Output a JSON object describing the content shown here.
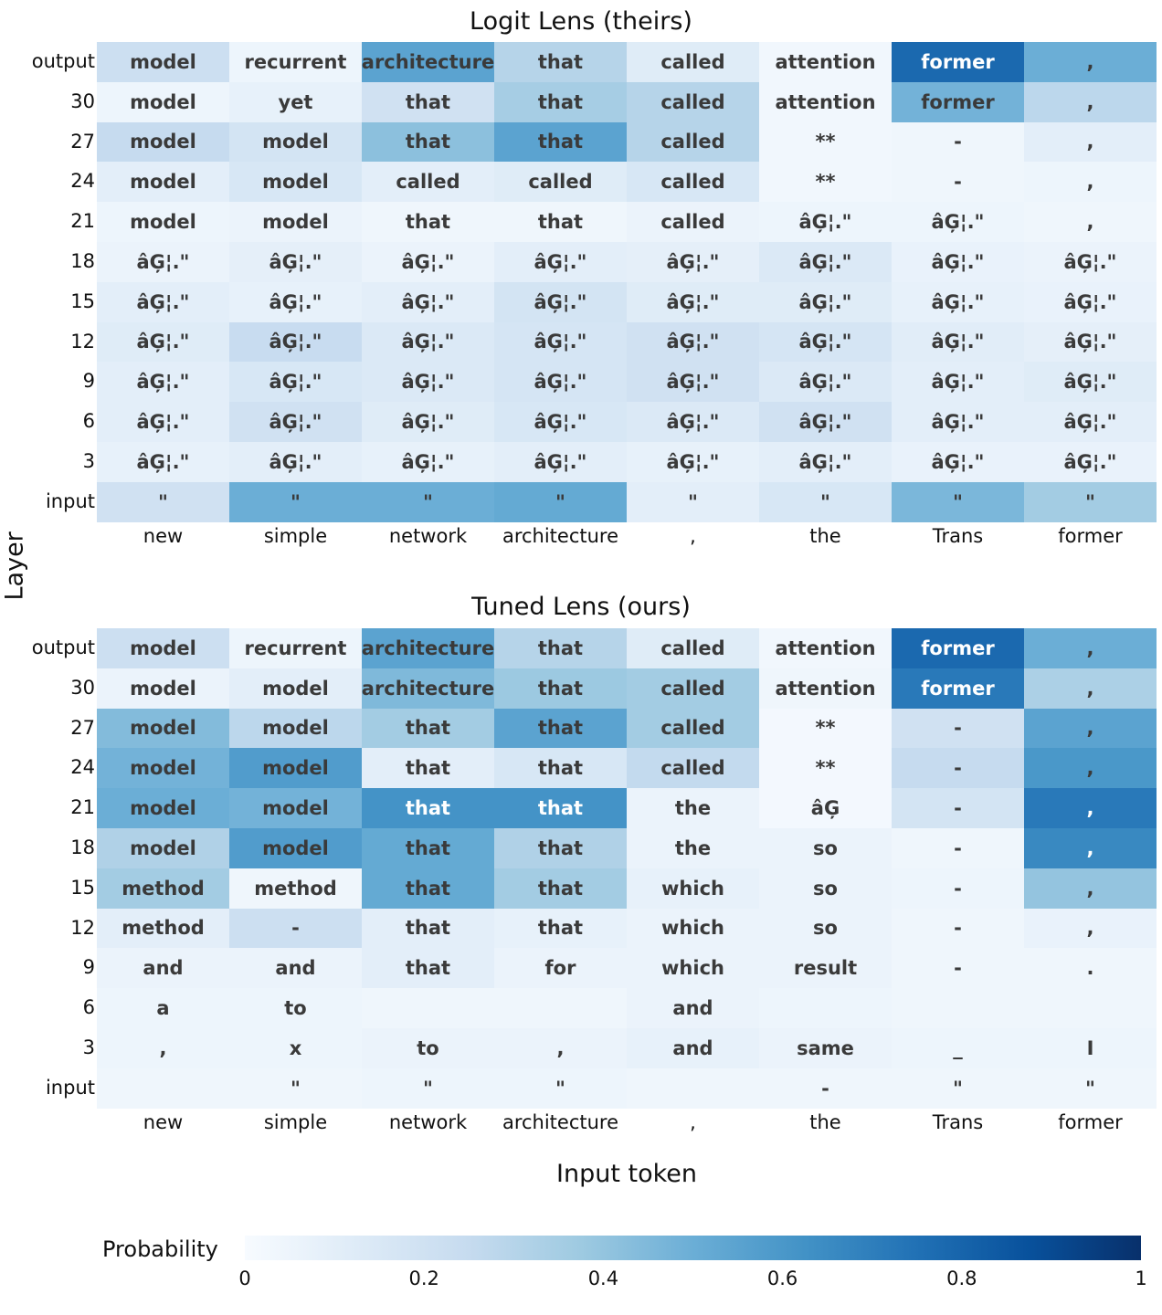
{
  "colors": {
    "scale_start": "#f7fbff",
    "scale_end": "#08306b"
  },
  "chart_data": [
    {
      "type": "heatmap",
      "title": "Logit Lens (theirs)",
      "ylabel": "Layer",
      "xlabel": "Input token",
      "x": [
        "new",
        "simple",
        "network",
        "architecture",
        ",",
        "the",
        "Trans",
        "former"
      ],
      "y": [
        "output",
        "30",
        "27",
        "24",
        "21",
        "18",
        "15",
        "12",
        "9",
        "6",
        "3",
        "input"
      ],
      "tokens": [
        [
          "model",
          "recurrent",
          "architecture",
          "that",
          "called",
          "attention",
          "former",
          ","
        ],
        [
          "model",
          "yet",
          "that",
          "that",
          "called",
          "attention",
          "former",
          ","
        ],
        [
          "model",
          "model",
          "that",
          "that",
          "called",
          "**",
          "-",
          ","
        ],
        [
          "model",
          "model",
          "called",
          "called",
          "called",
          "**",
          "-",
          ","
        ],
        [
          "model",
          "model",
          "that",
          "that",
          "called",
          "âĢ¦.\"",
          "âĢ¦.\"",
          ","
        ],
        [
          "âĢ¦.\"",
          "âĢ¦.\"",
          "âĢ¦.\"",
          "âĢ¦.\"",
          "âĢ¦.\"",
          "âĢ¦.\"",
          "âĢ¦.\"",
          "âĢ¦.\""
        ],
        [
          "âĢ¦.\"",
          "âĢ¦.\"",
          "âĢ¦.\"",
          "âĢ¦.\"",
          "âĢ¦.\"",
          "âĢ¦.\"",
          "âĢ¦.\"",
          "âĢ¦.\""
        ],
        [
          "âĢ¦.\"",
          "âĢ¦.\"",
          "âĢ¦.\"",
          "âĢ¦.\"",
          "âĢ¦.\"",
          "âĢ¦.\"",
          "âĢ¦.\"",
          "âĢ¦.\""
        ],
        [
          "âĢ¦.\"",
          "âĢ¦.\"",
          "âĢ¦.\"",
          "âĢ¦.\"",
          "âĢ¦.\"",
          "âĢ¦.\"",
          "âĢ¦.\"",
          "âĢ¦.\""
        ],
        [
          "âĢ¦.\"",
          "âĢ¦.\"",
          "âĢ¦.\"",
          "âĢ¦.\"",
          "âĢ¦.\"",
          "âĢ¦.\"",
          "âĢ¦.\"",
          "âĢ¦.\""
        ],
        [
          "âĢ¦.\"",
          "âĢ¦.\"",
          "âĢ¦.\"",
          "âĢ¦.\"",
          "âĢ¦.\"",
          "âĢ¦.\"",
          "âĢ¦.\"",
          "âĢ¦.\""
        ],
        [
          "\"",
          "\"",
          "\"",
          "\"",
          "\"",
          "\"",
          "\"",
          "\""
        ]
      ],
      "values": [
        [
          0.22,
          0.05,
          0.55,
          0.3,
          0.12,
          0.03,
          0.78,
          0.5
        ],
        [
          0.05,
          0.08,
          0.2,
          0.35,
          0.3,
          0.03,
          0.48,
          0.28
        ],
        [
          0.25,
          0.18,
          0.42,
          0.55,
          0.3,
          0.03,
          0.04,
          0.1
        ],
        [
          0.1,
          0.16,
          0.1,
          0.12,
          0.16,
          0.03,
          0.04,
          0.05
        ],
        [
          0.05,
          0.06,
          0.04,
          0.04,
          0.06,
          0.05,
          0.05,
          0.04
        ],
        [
          0.06,
          0.09,
          0.06,
          0.1,
          0.09,
          0.14,
          0.07,
          0.06
        ],
        [
          0.1,
          0.08,
          0.1,
          0.18,
          0.12,
          0.12,
          0.08,
          0.07
        ],
        [
          0.12,
          0.24,
          0.14,
          0.17,
          0.2,
          0.17,
          0.11,
          0.09
        ],
        [
          0.1,
          0.16,
          0.14,
          0.17,
          0.2,
          0.14,
          0.1,
          0.12
        ],
        [
          0.1,
          0.2,
          0.12,
          0.16,
          0.14,
          0.2,
          0.1,
          0.1
        ],
        [
          0.08,
          0.1,
          0.08,
          0.1,
          0.08,
          0.1,
          0.07,
          0.07
        ],
        [
          0.2,
          0.5,
          0.5,
          0.52,
          0.1,
          0.16,
          0.46,
          0.36
        ]
      ]
    },
    {
      "type": "heatmap",
      "title": "Tuned Lens (ours)",
      "ylabel": "Layer",
      "xlabel": "Input token",
      "x": [
        "new",
        "simple",
        "network",
        "architecture",
        ",",
        "the",
        "Trans",
        "former"
      ],
      "y": [
        "output",
        "30",
        "27",
        "24",
        "21",
        "18",
        "15",
        "12",
        "9",
        "6",
        "3",
        "input"
      ],
      "tokens": [
        [
          "model",
          "recurrent",
          "architecture",
          "that",
          "called",
          "attention",
          "former",
          ","
        ],
        [
          "model",
          "model",
          "architecture",
          "that",
          "called",
          "attention",
          "former",
          ","
        ],
        [
          "model",
          "model",
          "that",
          "that",
          "called",
          "**",
          "-",
          ","
        ],
        [
          "model",
          "model",
          "that",
          "that",
          "called",
          "**",
          "-",
          ","
        ],
        [
          "model",
          "model",
          "that",
          "that",
          "the",
          "âĢ",
          "-",
          ","
        ],
        [
          "model",
          "model",
          "that",
          "that",
          "the",
          "so",
          "-",
          ","
        ],
        [
          "method",
          "method",
          "that",
          "that",
          "which",
          "so",
          "-",
          ","
        ],
        [
          "method",
          "-",
          "that",
          "that",
          "which",
          "so",
          "-",
          ","
        ],
        [
          "and",
          "and",
          "that",
          "for",
          "which",
          "result",
          "-",
          "."
        ],
        [
          "a",
          "to",
          "",
          "",
          "and",
          "",
          "",
          ""
        ],
        [
          ",",
          "x",
          "to",
          ",",
          "and",
          "same",
          "_",
          "I"
        ],
        [
          "",
          "\"",
          "\"",
          "\"",
          "",
          "-",
          "\"",
          "\""
        ]
      ],
      "values": [
        [
          0.22,
          0.05,
          0.55,
          0.3,
          0.12,
          0.03,
          0.78,
          0.5
        ],
        [
          0.06,
          0.1,
          0.45,
          0.38,
          0.36,
          0.04,
          0.72,
          0.33
        ],
        [
          0.44,
          0.28,
          0.36,
          0.55,
          0.36,
          0.02,
          0.2,
          0.55
        ],
        [
          0.48,
          0.58,
          0.1,
          0.16,
          0.26,
          0.02,
          0.25,
          0.6
        ],
        [
          0.5,
          0.48,
          0.62,
          0.62,
          0.06,
          0.02,
          0.18,
          0.72
        ],
        [
          0.32,
          0.58,
          0.52,
          0.32,
          0.06,
          0.06,
          0.04,
          0.66
        ],
        [
          0.36,
          0.04,
          0.52,
          0.36,
          0.08,
          0.06,
          0.05,
          0.4
        ],
        [
          0.1,
          0.22,
          0.1,
          0.08,
          0.06,
          0.06,
          0.04,
          0.07
        ],
        [
          0.06,
          0.06,
          0.1,
          0.06,
          0.06,
          0.06,
          0.04,
          0.04
        ],
        [
          0.05,
          0.05,
          0.04,
          0.04,
          0.06,
          0.05,
          0.04,
          0.04
        ],
        [
          0.05,
          0.05,
          0.06,
          0.06,
          0.08,
          0.06,
          0.05,
          0.05
        ],
        [
          0.04,
          0.04,
          0.05,
          0.05,
          0.04,
          0.04,
          0.04,
          0.04
        ]
      ]
    }
  ],
  "colorbar": {
    "label": "Probability",
    "ticks": [
      "0",
      "0.2",
      "0.4",
      "0.6",
      "0.8",
      "1"
    ],
    "min": 0,
    "max": 1
  }
}
